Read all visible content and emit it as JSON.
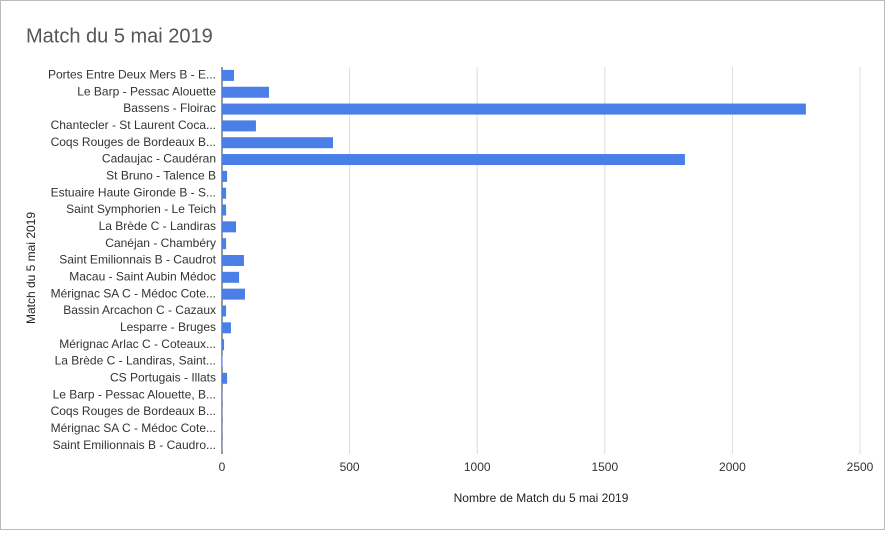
{
  "chart_data": {
    "type": "bar",
    "orientation": "horizontal",
    "title": "Match du 5 mai 2019",
    "x_label": "Nombre de Match du 5 mai 2019",
    "y_label": "Match du 5 mai 2019",
    "categories": [
      "Portes Entre Deux Mers B - E...",
      "Le Barp - Pessac Alouette",
      "Bassens - Floirac",
      "Chantecler - St Laurent Coca...",
      "Coqs Rouges de Bordeaux B...",
      "Cadaujac - Caudéran",
      "St Bruno - Talence B",
      "Estuaire Haute Gironde B - S...",
      "Saint Symphorien - Le Teich",
      "La Brède C - Landiras",
      "Canéjan - Chambéry",
      "Saint Emilionnais B - Caudrot",
      "Macau - Saint Aubin Médoc",
      "Mérignac SA C - Médoc Cote...",
      "Bassin Arcachon C - Cazaux",
      "Lesparre - Bruges",
      "Mérignac Arlac C - Coteaux...",
      "La Brède C - Landiras, Saint...",
      "CS Portugais - Illats",
      "Le Barp - Pessac Alouette, B...",
      "Coqs Rouges de Bordeaux B...",
      "Mérignac SA C - Médoc Cote...",
      "Saint Emilionnais B - Caudro..."
    ],
    "values": [
      47,
      184,
      2288,
      133,
      435,
      1814,
      20,
      16,
      16,
      55,
      16,
      86,
      67,
      90,
      16,
      35,
      8,
      2,
      20,
      1,
      1,
      1,
      1
    ],
    "color": "#4a7fe8",
    "xlim": [
      0,
      2500
    ],
    "xticks": [
      0,
      500,
      1000,
      1500,
      2000,
      2500
    ],
    "grid": true
  }
}
